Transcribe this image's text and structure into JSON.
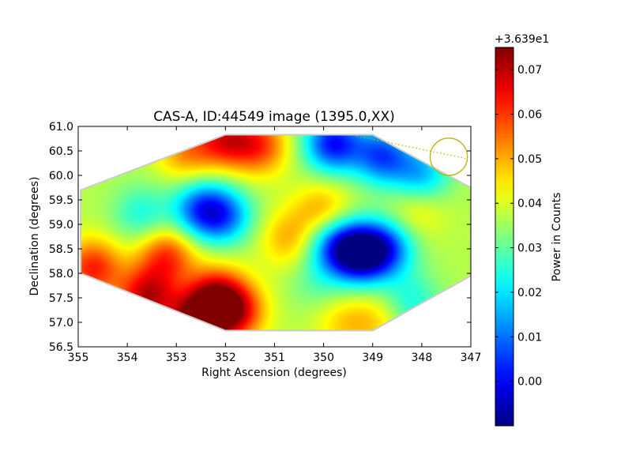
{
  "chart_data": {
    "type": "heatmap",
    "title": "CAS-A, ID:44549 image (1395.0,XX)",
    "xlabel": "Right Ascension (degrees)",
    "ylabel": "Declination (degrees)",
    "xlim": [
      355,
      347
    ],
    "ylim": [
      56.5,
      61.0
    ],
    "x_ticks": [
      "355",
      "354",
      "353",
      "352",
      "351",
      "350",
      "349",
      "348",
      "347"
    ],
    "y_ticks": [
      "56.5",
      "57.0",
      "57.5",
      "58.0",
      "58.5",
      "59.0",
      "59.5",
      "60.0",
      "60.5",
      "61.0"
    ],
    "colorbar": {
      "label": "Power in Counts",
      "offset_label": "+3.639e1",
      "range": [
        -0.01,
        0.075
      ],
      "ticks": [
        "0.00",
        "0.01",
        "0.02",
        "0.03",
        "0.04",
        "0.05",
        "0.06",
        "0.07"
      ],
      "colormap": "jet"
    },
    "background_level": 0.037,
    "features": [
      {
        "ra": 352.6,
        "dec": 56.95,
        "value": 0.074
      },
      {
        "ra": 353.6,
        "dec": 57.5,
        "value": 0.068
      },
      {
        "ra": 354.7,
        "dec": 58.1,
        "value": 0.062
      },
      {
        "ra": 352.2,
        "dec": 57.5,
        "value": 0.066
      },
      {
        "ra": 351.8,
        "dec": 57.2,
        "value": 0.064
      },
      {
        "ra": 352.0,
        "dec": 60.75,
        "value": 0.062
      },
      {
        "ra": 351.3,
        "dec": 60.6,
        "value": 0.058
      },
      {
        "ra": 352.8,
        "dec": 60.45,
        "value": 0.052
      },
      {
        "ra": 353.2,
        "dec": 58.35,
        "value": 0.06
      },
      {
        "ra": 352.5,
        "dec": 59.3,
        "value": 0.01
      },
      {
        "ra": 352.0,
        "dec": 59.15,
        "value": 0.014
      },
      {
        "ra": 349.25,
        "dec": 58.4,
        "value": -0.008
      },
      {
        "ra": 348.7,
        "dec": 58.5,
        "value": 0.012
      },
      {
        "ra": 349.8,
        "dec": 58.6,
        "value": 0.014
      },
      {
        "ra": 349.8,
        "dec": 60.65,
        "value": 0.002
      },
      {
        "ra": 348.8,
        "dec": 60.4,
        "value": 0.008
      },
      {
        "ra": 348.0,
        "dec": 60.0,
        "value": 0.016
      },
      {
        "ra": 350.0,
        "dec": 59.25,
        "value": 0.052
      },
      {
        "ra": 350.7,
        "dec": 58.7,
        "value": 0.05
      },
      {
        "ra": 349.6,
        "dec": 57.0,
        "value": 0.046
      },
      {
        "ra": 348.9,
        "dec": 57.0,
        "value": 0.046
      },
      {
        "ra": 348.1,
        "dec": 59.3,
        "value": 0.046
      },
      {
        "ra": 352.0,
        "dec": 58.45,
        "value": 0.038
      },
      {
        "ra": 353.7,
        "dec": 59.2,
        "value": 0.024
      },
      {
        "ra": 348.2,
        "dec": 57.4,
        "value": 0.024
      },
      {
        "ra": 350.1,
        "dec": 57.8,
        "value": 0.03
      }
    ],
    "field_hexagon": [
      [
        352.0,
        60.83
      ],
      [
        349.0,
        60.83
      ],
      [
        347.0,
        59.75
      ],
      [
        347.0,
        57.95
      ],
      [
        349.0,
        56.83
      ],
      [
        352.0,
        56.83
      ],
      [
        354.95,
        58.0
      ],
      [
        354.95,
        59.7
      ]
    ],
    "source_marker": {
      "ra": 347.45,
      "dec": 60.38,
      "radius_deg": 0.38
    },
    "grid": false
  }
}
